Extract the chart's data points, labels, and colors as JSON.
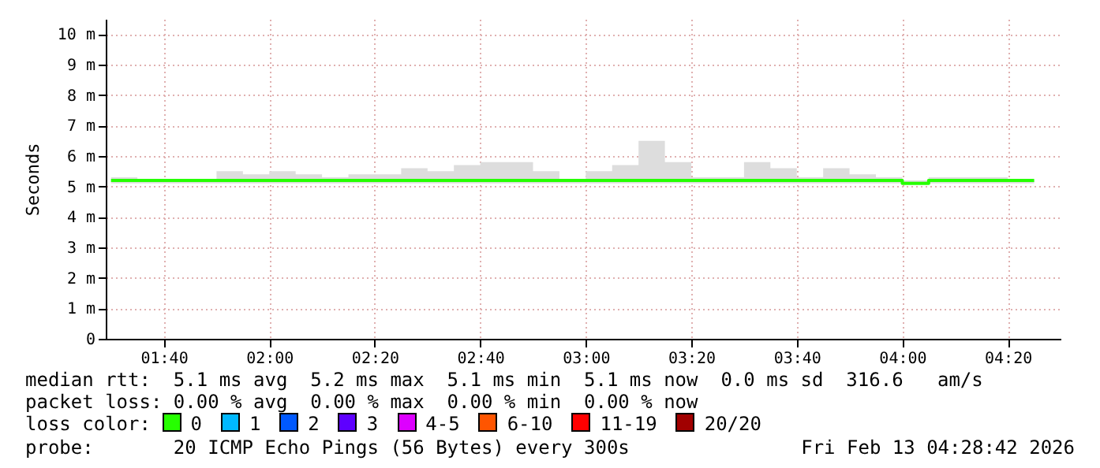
{
  "chart_data": {
    "type": "step",
    "ylabel": "Seconds",
    "legend_title": "loss color:",
    "legend": "bottom",
    "grid": true,
    "x": [
      1.5,
      1.5833,
      1.6667,
      1.75,
      1.8333,
      1.9167,
      2,
      2.0833,
      2.1667,
      2.25,
      2.3333,
      2.4167,
      2.5,
      2.5833,
      2.6667,
      2.75,
      2.8333,
      2.9167,
      3,
      3.0833,
      3.1667,
      3.25,
      3.3333,
      3.4167,
      3.5,
      3.5833,
      3.6667,
      3.75,
      3.8333,
      3.9167,
      4,
      4.0833,
      4.1667,
      4.25,
      4.3333,
      4.4167
    ],
    "xlim": [
      1.4833,
      4.5
    ],
    "xticks": [
      {
        "value": 1.6667,
        "label": "01:40"
      },
      {
        "value": 2,
        "label": "02:00"
      },
      {
        "value": 2.3333,
        "label": "02:20"
      },
      {
        "value": 2.6667,
        "label": "02:40"
      },
      {
        "value": 3,
        "label": "03:00"
      },
      {
        "value": 3.3333,
        "label": "03:20"
      },
      {
        "value": 3.6667,
        "label": "03:40"
      },
      {
        "value": 4,
        "label": "04:00"
      },
      {
        "value": 4.3333,
        "label": "04:20"
      }
    ],
    "ylim": [
      0,
      10.5
    ],
    "yticks": [
      0,
      {
        "value": 1,
        "label": "1 m"
      },
      {
        "value": 2,
        "label": "2 m"
      },
      {
        "value": 3,
        "label": "3 m"
      },
      {
        "value": 4,
        "label": "4 m"
      },
      {
        "value": 5,
        "label": "5 m"
      },
      {
        "value": 6,
        "label": "6 m"
      },
      {
        "value": 7,
        "label": "7 m"
      },
      {
        "value": 8,
        "label": "8 m"
      },
      {
        "value": 9,
        "label": "9 m"
      },
      {
        "value": 10,
        "label": "10 m"
      }
    ],
    "series": [
      {
        "name": "0",
        "color": "#26ff00",
        "values": [
          5.2,
          5.2,
          5.2,
          5.2,
          5.2,
          5.2,
          5.2,
          5.2,
          5.2,
          5.2,
          5.2,
          5.2,
          5.2,
          5.2,
          5.2,
          5.2,
          5.2,
          5.2,
          5.2,
          5.2,
          5.2,
          5.2,
          5.2,
          5.2,
          5.2,
          5.2,
          5.2,
          5.2,
          5.2,
          5.2,
          5.1,
          5.2,
          5.2,
          5.2,
          5.2,
          5.2
        ],
        "lower": [
          5.1,
          5.1,
          5.1,
          5.1,
          5.1,
          5.1,
          5.1,
          5.1,
          5.1,
          5.1,
          5.1,
          5.1,
          5.1,
          5.1,
          5.1,
          5.1,
          5.1,
          5.1,
          5.1,
          5.1,
          5.1,
          5.1,
          5.1,
          5.1,
          5.1,
          5.1,
          5.1,
          5.1,
          5.1,
          5.1,
          5.1,
          5.1,
          5.1,
          5.1,
          5.1,
          5.1
        ],
        "upper": [
          5.3,
          5.2,
          5.2,
          5.2,
          5.5,
          5.4,
          5.5,
          5.4,
          5.3,
          5.4,
          5.4,
          5.6,
          5.5,
          5.7,
          5.8,
          5.8,
          5.5,
          5.2,
          5.5,
          5.7,
          6.5,
          5.8,
          5.3,
          5.3,
          5.8,
          5.6,
          5.3,
          5.6,
          5.4,
          5.3,
          5.2,
          5.3,
          5.3,
          5.3,
          5.2,
          5.2
        ]
      },
      {
        "name": "1",
        "color": "#00b8ff",
        "values": [
          null,
          null,
          null,
          null,
          null,
          null,
          null,
          null,
          null,
          null,
          null,
          null,
          null,
          null,
          null,
          null,
          null,
          null,
          null,
          null,
          null,
          null,
          null,
          null,
          null,
          null,
          null,
          null,
          null,
          null,
          null,
          null,
          null,
          null,
          null,
          null
        ]
      },
      {
        "name": "2",
        "color": "#0059ff",
        "values": [
          null,
          null,
          null,
          null,
          null,
          null,
          null,
          null,
          null,
          null,
          null,
          null,
          null,
          null,
          null,
          null,
          null,
          null,
          null,
          null,
          null,
          null,
          null,
          null,
          null,
          null,
          null,
          null,
          null,
          null,
          null,
          null,
          null,
          null,
          null,
          null
        ]
      },
      {
        "name": "3",
        "color": "#5e00ff",
        "values": [
          null,
          null,
          null,
          null,
          null,
          null,
          null,
          null,
          null,
          null,
          null,
          null,
          null,
          null,
          null,
          null,
          null,
          null,
          null,
          null,
          null,
          null,
          null,
          null,
          null,
          null,
          null,
          null,
          null,
          null,
          null,
          null,
          null,
          null,
          null,
          null
        ]
      },
      {
        "name": "4-5",
        "color": "#dd00ff",
        "values": [
          null,
          null,
          null,
          null,
          null,
          null,
          null,
          null,
          null,
          null,
          null,
          null,
          null,
          null,
          null,
          null,
          null,
          null,
          null,
          null,
          null,
          null,
          null,
          null,
          null,
          null,
          null,
          null,
          null,
          null,
          null,
          null,
          null,
          null,
          null,
          null
        ]
      },
      {
        "name": "6-10",
        "color": "#ff5500",
        "values": [
          null,
          null,
          null,
          null,
          null,
          null,
          null,
          null,
          null,
          null,
          null,
          null,
          null,
          null,
          null,
          null,
          null,
          null,
          null,
          null,
          null,
          null,
          null,
          null,
          null,
          null,
          null,
          null,
          null,
          null,
          null,
          null,
          null,
          null,
          null,
          null
        ]
      },
      {
        "name": "11-19",
        "color": "#ff0000",
        "values": [
          null,
          null,
          null,
          null,
          null,
          null,
          null,
          null,
          null,
          null,
          null,
          null,
          null,
          null,
          null,
          null,
          null,
          null,
          null,
          null,
          null,
          null,
          null,
          null,
          null,
          null,
          null,
          null,
          null,
          null,
          null,
          null,
          null,
          null,
          null,
          null
        ]
      },
      {
        "name": "20/20",
        "color": "#a10000",
        "values": [
          null,
          null,
          null,
          null,
          null,
          null,
          null,
          null,
          null,
          null,
          null,
          null,
          null,
          null,
          null,
          null,
          null,
          null,
          null,
          null,
          null,
          null,
          null,
          null,
          null,
          null,
          null,
          null,
          null,
          null,
          null,
          null,
          null,
          null,
          null,
          null
        ]
      }
    ],
    "annotations": [
      "median rtt:  5.1 ms avg  5.2 ms max  5.1 ms min  5.1 ms now  0.0 ms sd  316.6   am/s",
      "packet loss: 0.00 % avg  0.00 % max  0.00 % min  0.00 % now",
      "probe:       20 ICMP Echo Pings (56 Bytes) every 300s",
      "Fri Feb 13 04:28:42 2026"
    ]
  }
}
